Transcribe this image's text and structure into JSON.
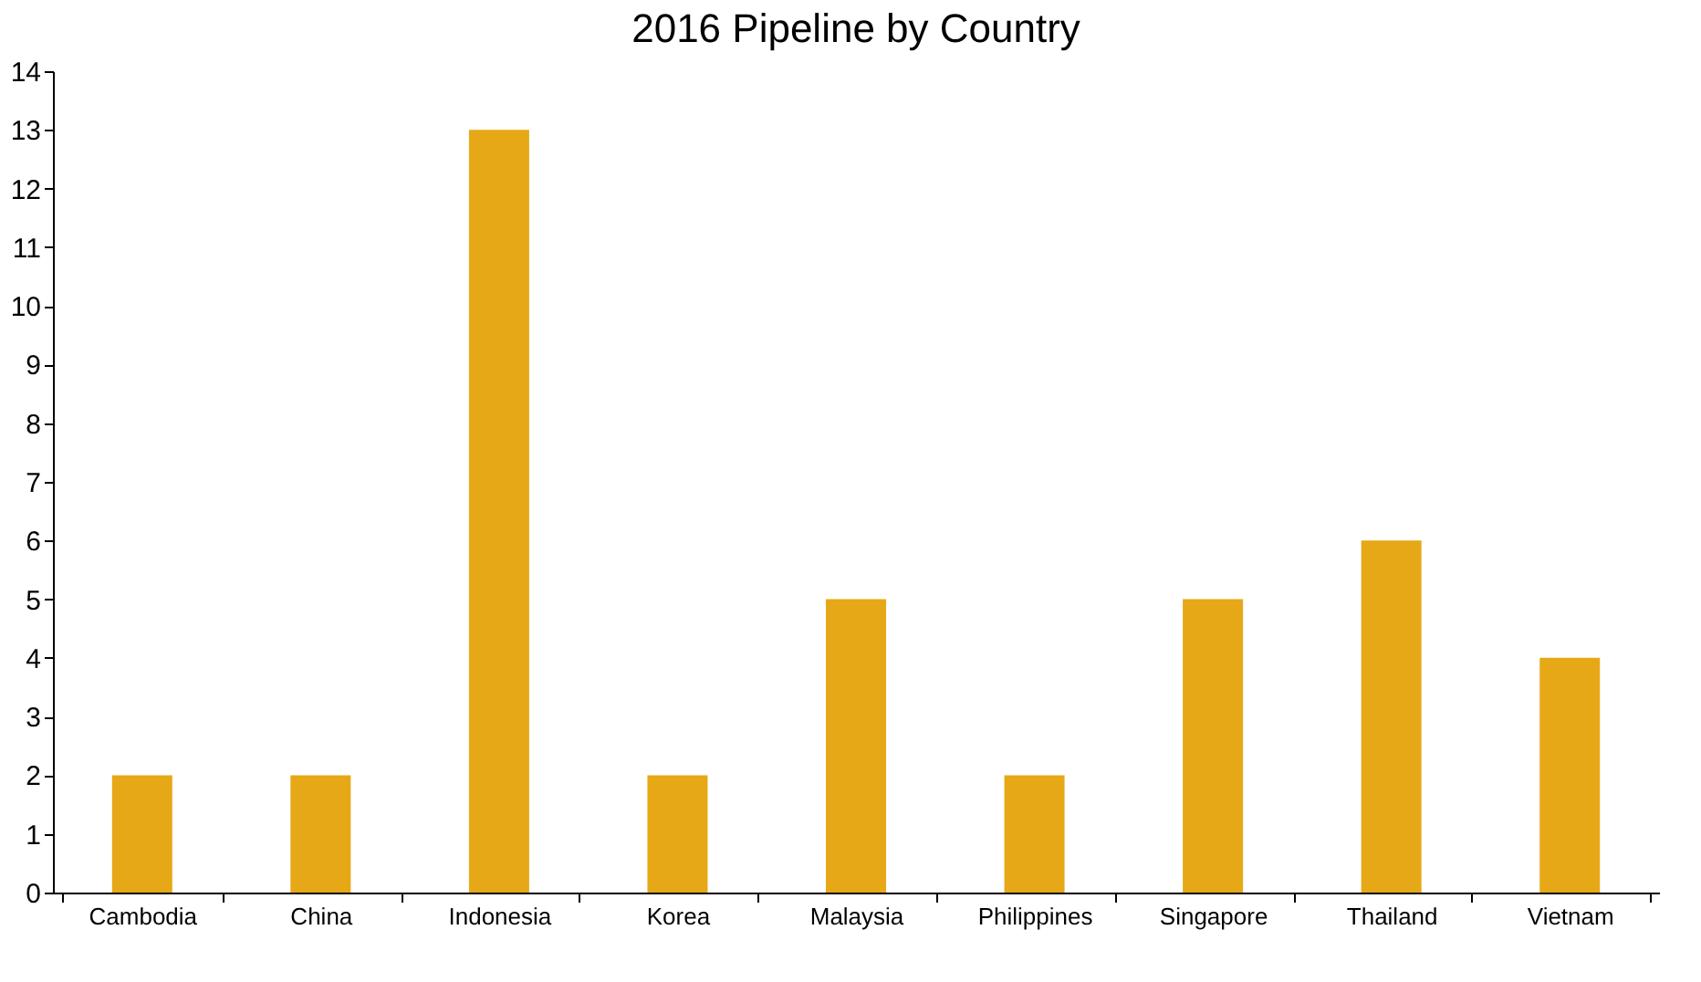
{
  "chart_data": {
    "type": "bar",
    "title": "2016 Pipeline by Country",
    "categories": [
      "Cambodia",
      "China",
      "Indonesia",
      "Korea",
      "Malaysia",
      "Philippines",
      "Singapore",
      "Thailand",
      "Vietnam"
    ],
    "values": [
      2,
      2,
      13,
      2,
      5,
      2,
      5,
      6,
      4
    ],
    "color": "#e6a817",
    "ylim": [
      0,
      14
    ],
    "yticks": [
      0,
      1,
      2,
      3,
      4,
      5,
      6,
      7,
      8,
      9,
      10,
      11,
      12,
      13,
      14
    ],
    "grid": false
  }
}
